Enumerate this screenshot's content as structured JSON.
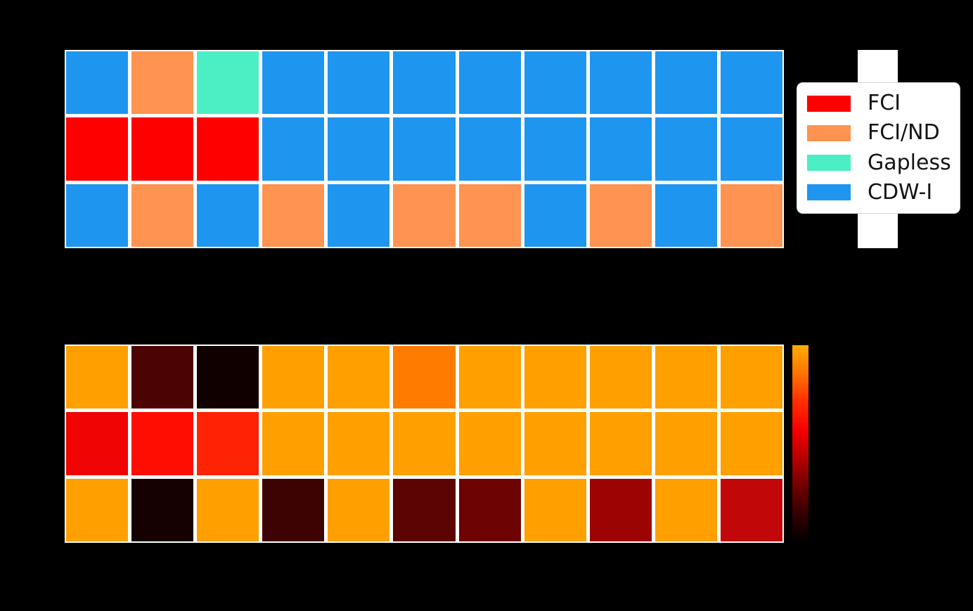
{
  "figure": {
    "background_color": "#000000",
    "grid_line_color": "#ffffff"
  },
  "legend": {
    "items": [
      {
        "label": "FCI",
        "color": "#fe0000"
      },
      {
        "label": "FCI/ND",
        "color": "#ff9351"
      },
      {
        "label": "Gapless",
        "color": "#4ceec4"
      },
      {
        "label": "CDW-I",
        "color": "#1e96f0"
      }
    ]
  },
  "chart_data": [
    {
      "type": "heatmap",
      "subtype": "categorical-phase-diagram",
      "rows": 3,
      "columns": 11,
      "cell_name": "phase-cell",
      "values": [
        [
          "CDW-I",
          "FCI/ND",
          "Gapless",
          "CDW-I",
          "CDW-I",
          "CDW-I",
          "CDW-I",
          "CDW-I",
          "CDW-I",
          "CDW-I",
          "CDW-I"
        ],
        [
          "FCI",
          "FCI",
          "FCI",
          "CDW-I",
          "CDW-I",
          "CDW-I",
          "CDW-I",
          "CDW-I",
          "CDW-I",
          "CDW-I",
          "CDW-I"
        ],
        [
          "CDW-I",
          "FCI/ND",
          "CDW-I",
          "FCI/ND",
          "CDW-I",
          "FCI/ND",
          "FCI/ND",
          "CDW-I",
          "FCI/ND",
          "CDW-I",
          "FCI/ND"
        ]
      ],
      "palette": {
        "FCI": "#fe0000",
        "FCI/ND": "#ff9351",
        "Gapless": "#4ceec4",
        "CDW-I": "#1e96f0"
      },
      "legend_position": "right",
      "grid_lines": "white"
    },
    {
      "type": "heatmap",
      "subtype": "continuous-heat-colormap",
      "rows": 3,
      "columns": 11,
      "cell_name": "heatmap-cell",
      "values": [
        [
          "#ffa000",
          "#4c0303",
          "#100100",
          "#ffa000",
          "#ffa000",
          "#ff7c00",
          "#ffa000",
          "#ffa000",
          "#ffa000",
          "#ffa000",
          "#ffa000"
        ],
        [
          "#f00404",
          "#ff0d02",
          "#ff2305",
          "#ffa000",
          "#ffa000",
          "#ffa000",
          "#ffa000",
          "#ffa000",
          "#ffa000",
          "#ffa000",
          "#ffa000"
        ],
        [
          "#ffa000",
          "#150101",
          "#ffa000",
          "#3d0303",
          "#ffa000",
          "#5c0303",
          "#6e0303",
          "#ffa000",
          "#9c0303",
          "#ffa000",
          "#c10707"
        ]
      ],
      "colorbar": {
        "position": "right",
        "gradient_top_to_bottom": [
          "#ffac00",
          "#ff7300",
          "#ff2e00",
          "#f70000",
          "#b50000",
          "#700000",
          "#330000",
          "#000000"
        ]
      },
      "grid_lines": "white"
    }
  ]
}
